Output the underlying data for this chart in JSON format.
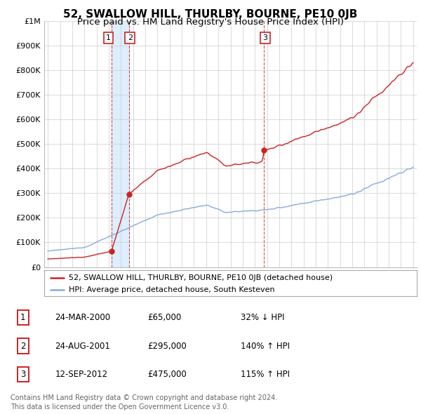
{
  "title": "52, SWALLOW HILL, THURLBY, BOURNE, PE10 0JB",
  "subtitle": "Price paid vs. HM Land Registry's House Price Index (HPI)",
  "title_fontsize": 11,
  "subtitle_fontsize": 9.5,
  "ylabel_labels": [
    "£0",
    "£100K",
    "£200K",
    "£300K",
    "£400K",
    "£500K",
    "£600K",
    "£700K",
    "£800K",
    "£900K",
    "£1M"
  ],
  "yticks": [
    0,
    100000,
    200000,
    300000,
    400000,
    500000,
    600000,
    700000,
    800000,
    900000,
    1000000
  ],
  "ylim": [
    0,
    1000000
  ],
  "xlim_start": 1994.7,
  "xlim_end": 2025.3,
  "transactions": [
    {
      "date": 2000.23,
      "price": 65000,
      "label": "1"
    },
    {
      "date": 2001.65,
      "price": 295000,
      "label": "2"
    },
    {
      "date": 2012.71,
      "price": 475000,
      "label": "3"
    }
  ],
  "vline_dates": [
    2000.23,
    2001.65,
    2012.71
  ],
  "property_color": "#cc2222",
  "hpi_color": "#88aadd",
  "shade_color": "#ddeeff",
  "legend_property": "52, SWALLOW HILL, THURLBY, BOURNE, PE10 0JB (detached house)",
  "legend_hpi": "HPI: Average price, detached house, South Kesteven",
  "table_rows": [
    {
      "num": "1",
      "date": "24-MAR-2000",
      "price": "£65,000",
      "change": "32% ↓ HPI"
    },
    {
      "num": "2",
      "date": "24-AUG-2001",
      "price": "£295,000",
      "change": "140% ↑ HPI"
    },
    {
      "num": "3",
      "date": "12-SEP-2012",
      "price": "£475,000",
      "change": "115% ↑ HPI"
    }
  ],
  "footer": "Contains HM Land Registry data © Crown copyright and database right 2024.\nThis data is licensed under the Open Government Licence v3.0.",
  "background_color": "#ffffff",
  "grid_color": "#cccccc"
}
